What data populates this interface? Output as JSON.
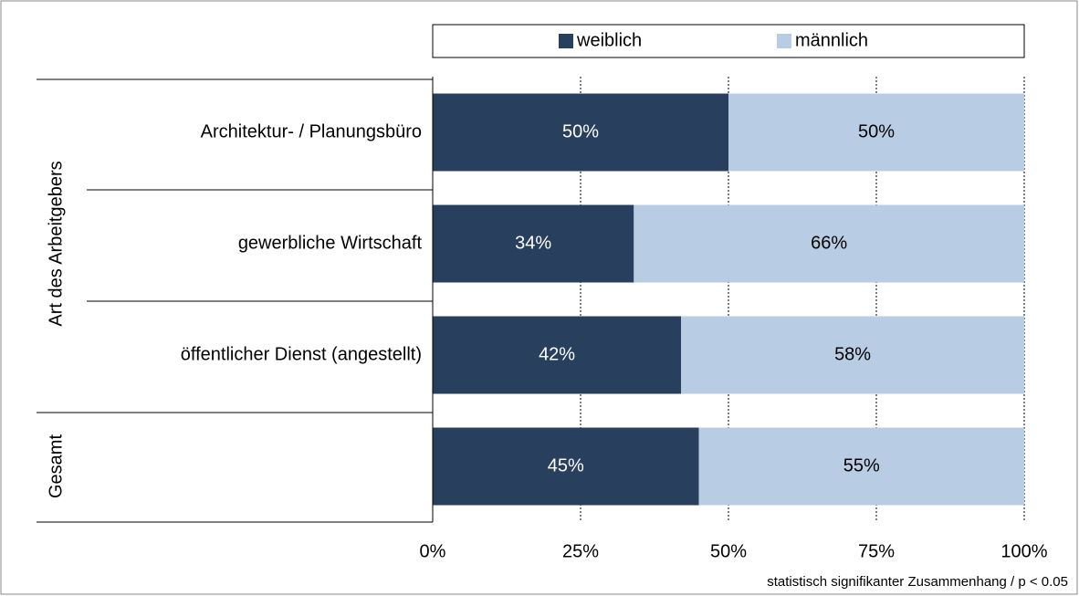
{
  "chart_data": {
    "type": "stacked_bar_horizontal",
    "categories": [
      "Architektur- / Planungsbüro",
      "gewerbliche Wirtschaft",
      "öffentlicher Dienst (angestellt)",
      null
    ],
    "groups": [
      {
        "label": "Art des Arbeitgebers",
        "size": 3
      },
      {
        "label": "Gesamt",
        "size": 1
      }
    ],
    "series": [
      {
        "name": "weiblich",
        "color": "#283f5e",
        "label_color": "#ffffff",
        "values": [
          50,
          34,
          42,
          45
        ],
        "value_labels": [
          "50%",
          "34%",
          "42%",
          "45%"
        ]
      },
      {
        "name": "männlich",
        "color": "#b8cce4",
        "label_color": "#000000",
        "values": [
          50,
          66,
          58,
          55
        ],
        "value_labels": [
          "50%",
          "66%",
          "58%",
          "55%"
        ]
      }
    ],
    "xlim": [
      0,
      100
    ],
    "xticks": [
      {
        "value": 0,
        "label": "0%"
      },
      {
        "value": 25,
        "label": "25%"
      },
      {
        "value": 50,
        "label": "50%"
      },
      {
        "value": 75,
        "label": "75%"
      },
      {
        "value": 100,
        "label": "100%"
      }
    ],
    "grid": true,
    "legend": "top",
    "annotation": "statistisch signifikanter Zusammenhang / p < 0.05"
  }
}
